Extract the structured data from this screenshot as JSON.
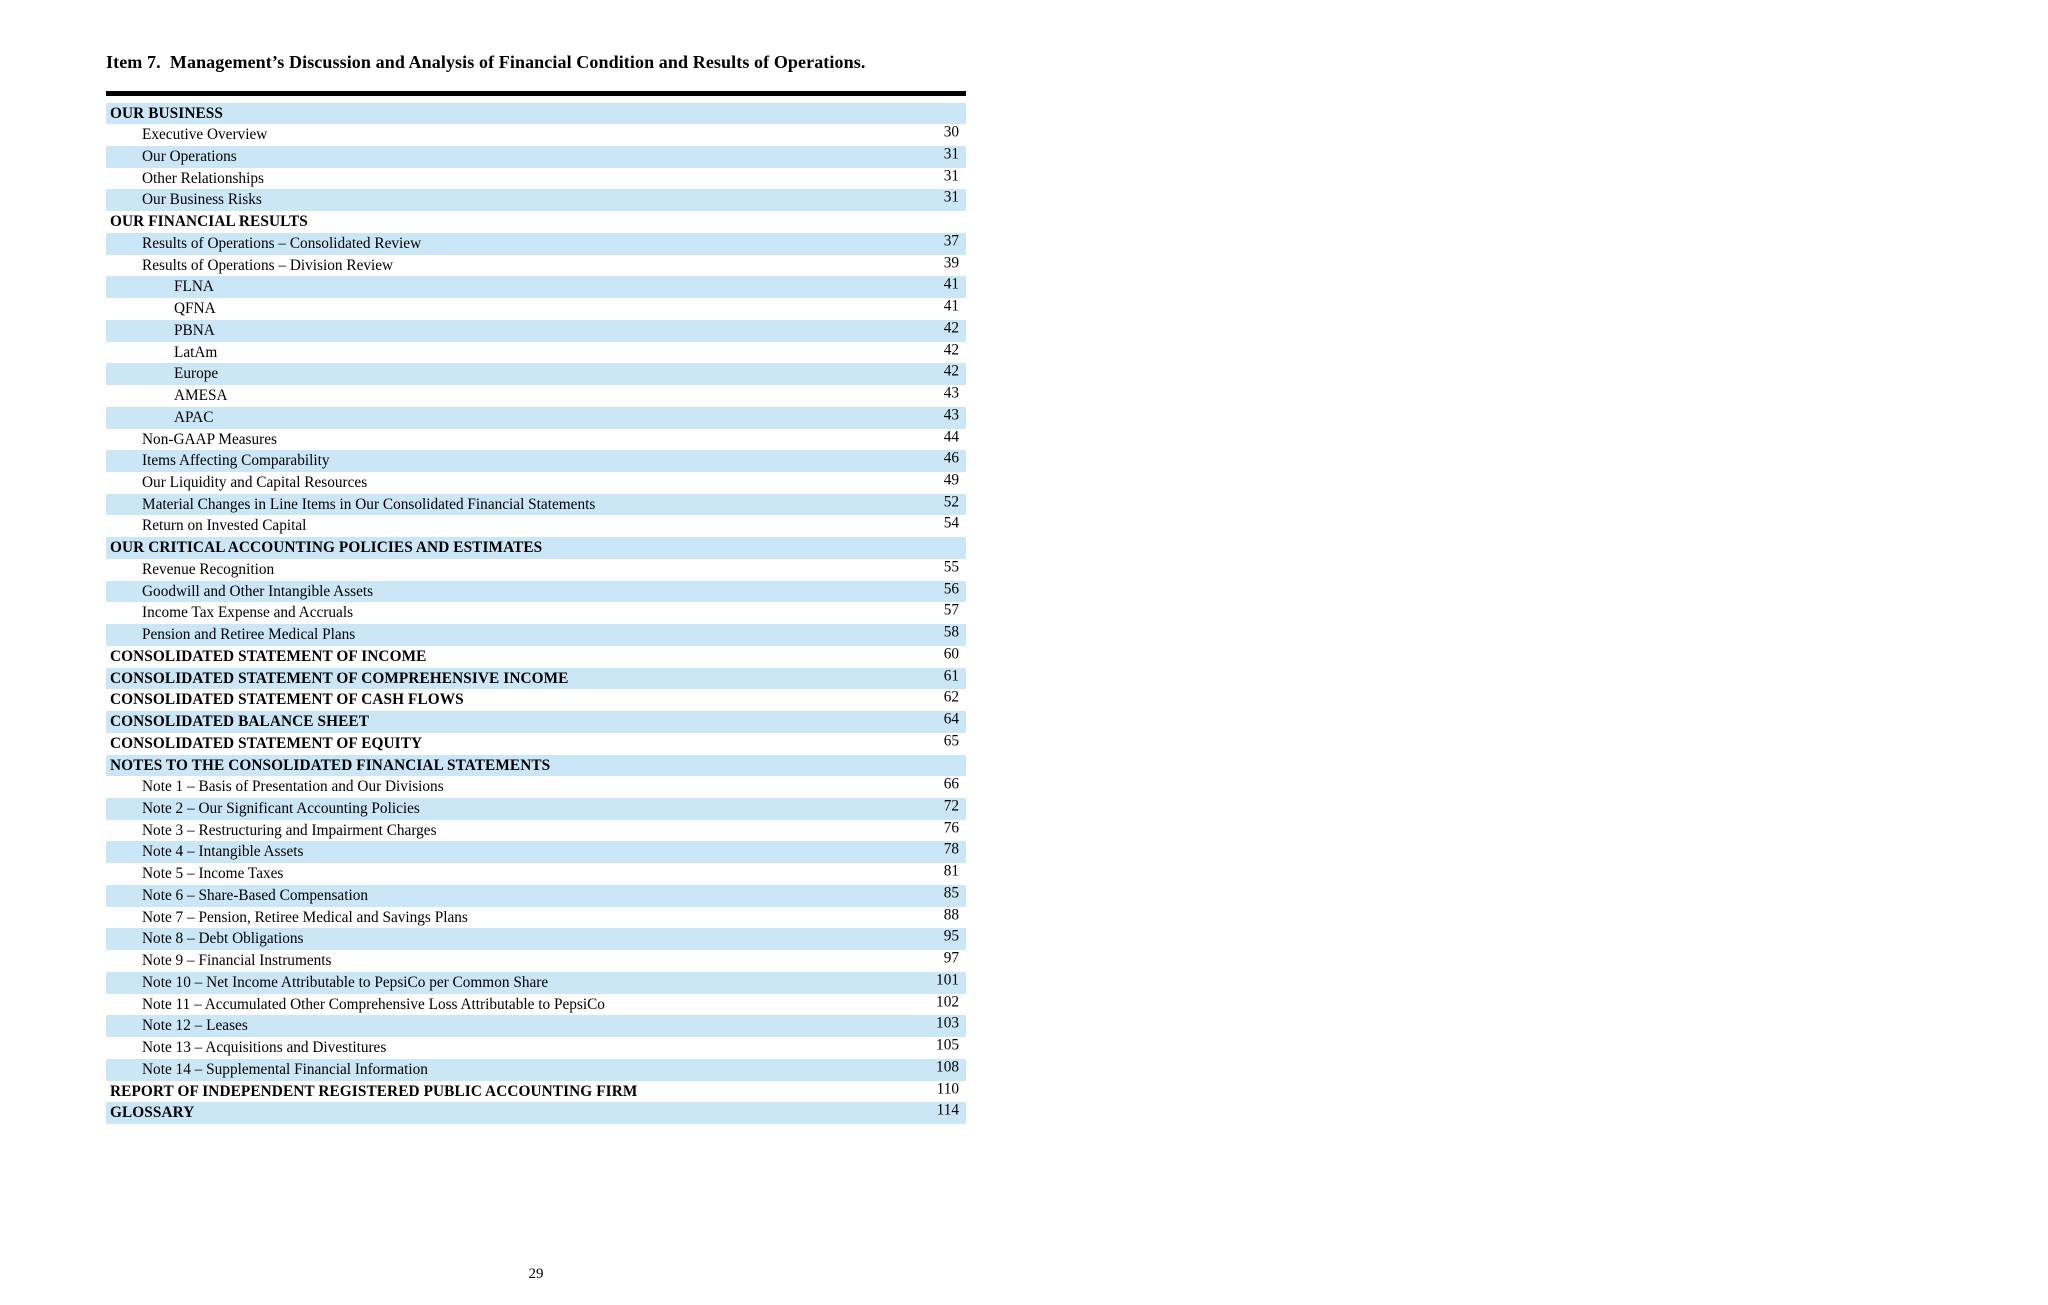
{
  "document": {
    "title": "Item 7.  Management’s Discussion and Analysis of Financial Condition and Results of Operations.",
    "footer_page_number": "29"
  },
  "colors": {
    "row_stripe": "#cbe7f7",
    "rule": "#000000",
    "text": "#000000"
  },
  "toc": {
    "rows": [
      {
        "label": "OUR BUSINESS",
        "page": "",
        "level": 0
      },
      {
        "label": "Executive Overview",
        "page": "30",
        "level": 1
      },
      {
        "label": "Our Operations",
        "page": "31",
        "level": 1
      },
      {
        "label": "Other Relationships",
        "page": "31",
        "level": 1
      },
      {
        "label": "Our Business Risks",
        "page": "31",
        "level": 1
      },
      {
        "label": "OUR FINANCIAL RESULTS",
        "page": "",
        "level": 0
      },
      {
        "label": "Results of Operations – Consolidated Review",
        "page": "37",
        "level": 1
      },
      {
        "label": "Results of Operations – Division Review",
        "page": "39",
        "level": 1
      },
      {
        "label": "FLNA",
        "page": "41",
        "level": 2
      },
      {
        "label": "QFNA",
        "page": "41",
        "level": 2
      },
      {
        "label": "PBNA",
        "page": "42",
        "level": 2
      },
      {
        "label": "LatAm",
        "page": "42",
        "level": 2
      },
      {
        "label": "Europe",
        "page": "42",
        "level": 2
      },
      {
        "label": "AMESA",
        "page": "43",
        "level": 2
      },
      {
        "label": "APAC",
        "page": "43",
        "level": 2
      },
      {
        "label": "Non-GAAP Measures",
        "page": "44",
        "level": 1
      },
      {
        "label": "Items Affecting Comparability",
        "page": "46",
        "level": 1
      },
      {
        "label": "Our Liquidity and Capital Resources",
        "page": "49",
        "level": 1
      },
      {
        "label": "Material Changes in Line Items in Our Consolidated Financial Statements",
        "page": "52",
        "level": 1
      },
      {
        "label": "Return on Invested Capital",
        "page": "54",
        "level": 1
      },
      {
        "label": "OUR CRITICAL ACCOUNTING POLICIES AND ESTIMATES",
        "page": "",
        "level": 0
      },
      {
        "label": "Revenue Recognition",
        "page": "55",
        "level": 1
      },
      {
        "label": "Goodwill and Other Intangible Assets",
        "page": "56",
        "level": 1
      },
      {
        "label": "Income Tax Expense and Accruals",
        "page": "57",
        "level": 1
      },
      {
        "label": "Pension and Retiree Medical Plans",
        "page": "58",
        "level": 1
      },
      {
        "label": "CONSOLIDATED STATEMENT OF INCOME",
        "page": "60",
        "level": 0
      },
      {
        "label": "CONSOLIDATED STATEMENT OF COMPREHENSIVE INCOME",
        "page": "61",
        "level": 0
      },
      {
        "label": "CONSOLIDATED STATEMENT OF CASH FLOWS",
        "page": "62",
        "level": 0
      },
      {
        "label": "CONSOLIDATED BALANCE SHEET",
        "page": "64",
        "level": 0
      },
      {
        "label": "CONSOLIDATED STATEMENT OF EQUITY",
        "page": "65",
        "level": 0
      },
      {
        "label": "NOTES TO THE CONSOLIDATED FINANCIAL STATEMENTS",
        "page": "",
        "level": 0
      },
      {
        "label": "Note 1 – Basis of Presentation and Our Divisions",
        "page": "66",
        "level": 1
      },
      {
        "label": "Note 2 – Our Significant Accounting Policies",
        "page": "72",
        "level": 1
      },
      {
        "label": "Note 3 – Restructuring and Impairment Charges",
        "page": "76",
        "level": 1
      },
      {
        "label": "Note 4 – Intangible Assets",
        "page": "78",
        "level": 1
      },
      {
        "label": "Note 5 – Income Taxes",
        "page": "81",
        "level": 1
      },
      {
        "label": "Note 6 – Share-Based Compensation",
        "page": "85",
        "level": 1
      },
      {
        "label": "Note 7 – Pension, Retiree Medical and Savings Plans",
        "page": "88",
        "level": 1
      },
      {
        "label": "Note 8 – Debt Obligations",
        "page": "95",
        "level": 1
      },
      {
        "label": "Note 9 – Financial Instruments",
        "page": "97",
        "level": 1
      },
      {
        "label": "Note 10 – Net Income Attributable to PepsiCo per Common Share",
        "page": "101",
        "level": 1
      },
      {
        "label": "Note 11 – Accumulated Other Comprehensive Loss Attributable to PepsiCo",
        "page": "102",
        "level": 1
      },
      {
        "label": "Note 12 – Leases",
        "page": "103",
        "level": 1
      },
      {
        "label": "Note 13 – Acquisitions and Divestitures",
        "page": "105",
        "level": 1
      },
      {
        "label": "Note 14 – Supplemental Financial Information",
        "page": "108",
        "level": 1
      },
      {
        "label": "REPORT OF INDEPENDENT REGISTERED PUBLIC ACCOUNTING FIRM",
        "page": "110",
        "level": 0
      },
      {
        "label": "GLOSSARY",
        "page": "114",
        "level": 0
      }
    ]
  }
}
